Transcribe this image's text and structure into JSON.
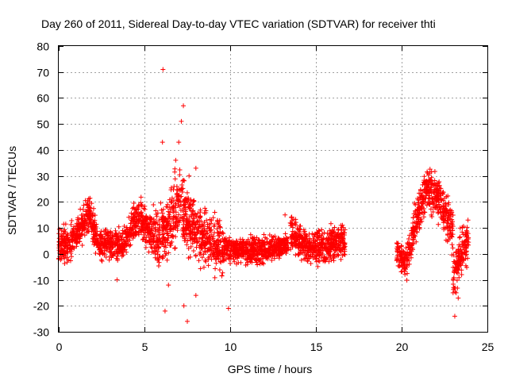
{
  "chart_data": {
    "type": "scatter",
    "title": "Day 260 of 2011, Sidereal Day-to-day VTEC variation (SDTVAR) for receiver thti",
    "xlabel": "GPS time / hours",
    "ylabel": "SDTVAR / TECUs",
    "xlim": [
      0,
      25
    ],
    "ylim": [
      -30,
      80
    ],
    "xticks": [
      0,
      5,
      10,
      15,
      20,
      25
    ],
    "yticks": [
      -30,
      -20,
      -10,
      0,
      10,
      20,
      30,
      40,
      50,
      60,
      70,
      80
    ],
    "grid": true,
    "marker": "+",
    "color": "#ff0000",
    "series": [
      {
        "name": "SDTVAR",
        "segments": [
          {
            "x_start": 0.0,
            "x_end": 0.8,
            "center": [
              [
                0.0,
                2
              ],
              [
                0.4,
                3
              ],
              [
                0.8,
                5
              ]
            ],
            "spread": 10
          },
          {
            "x_start": 0.8,
            "x_end": 2.3,
            "center": [
              [
                0.8,
                5
              ],
              [
                1.3,
                10
              ],
              [
                1.8,
                16
              ],
              [
                2.3,
                4
              ]
            ],
            "spread": 9
          },
          {
            "x_start": 2.3,
            "x_end": 3.7,
            "center": [
              [
                2.3,
                4
              ],
              [
                3.0,
                4
              ],
              [
                3.7,
                3
              ]
            ],
            "spread": 8
          },
          {
            "x_start": 3.7,
            "x_end": 4.7,
            "center": [
              [
                3.7,
                3
              ],
              [
                4.2,
                10
              ],
              [
                4.7,
                14
              ]
            ],
            "spread": 9
          },
          {
            "x_start": 4.7,
            "x_end": 5.5,
            "center": [
              [
                4.7,
                14
              ],
              [
                5.1,
                10
              ],
              [
                5.5,
                6
              ]
            ],
            "spread": 10
          },
          {
            "x_start": 5.5,
            "x_end": 6.5,
            "center": [
              [
                5.5,
                6
              ],
              [
                6.0,
                8
              ],
              [
                6.5,
                10
              ]
            ],
            "spread": 16
          },
          {
            "x_start": 6.5,
            "x_end": 7.4,
            "center": [
              [
                6.5,
                10
              ],
              [
                7.0,
                20
              ],
              [
                7.4,
                15
              ]
            ],
            "spread": 22
          },
          {
            "x_start": 7.4,
            "x_end": 9.6,
            "center": [
              [
                7.4,
                15
              ],
              [
                8.5,
                5
              ],
              [
                9.6,
                2
              ]
            ],
            "spread": 16
          },
          {
            "x_start": 9.6,
            "x_end": 13.4,
            "center": [
              [
                9.6,
                2
              ],
              [
                11.5,
                1
              ],
              [
                13.4,
                4
              ]
            ],
            "spread": 7
          },
          {
            "x_start": 13.5,
            "x_end": 16.7,
            "center": [
              [
                13.5,
                8
              ],
              [
                14.5,
                2
              ],
              [
                15.5,
                3
              ],
              [
                16.7,
                5
              ]
            ],
            "spread": 9
          },
          {
            "x_start": 19.7,
            "x_end": 20.2,
            "center": [
              [
                19.7,
                2
              ],
              [
                20.0,
                -2
              ],
              [
                20.2,
                -5
              ]
            ],
            "spread": 7
          },
          {
            "x_start": 20.2,
            "x_end": 21.5,
            "center": [
              [
                20.2,
                -5
              ],
              [
                20.8,
                12
              ],
              [
                21.5,
                26
              ]
            ],
            "spread": 10
          },
          {
            "x_start": 21.5,
            "x_end": 23.0,
            "center": [
              [
                21.5,
                26
              ],
              [
                22.2,
                20
              ],
              [
                23.0,
                8
              ]
            ],
            "spread": 12
          },
          {
            "x_start": 23.0,
            "x_end": 23.9,
            "center": [
              [
                23.0,
                -10
              ],
              [
                23.4,
                0
              ],
              [
                23.9,
                5
              ]
            ],
            "spread": 12
          }
        ],
        "outliers": [
          {
            "x": 6.08,
            "y": 71
          },
          {
            "x": 6.05,
            "y": 43
          },
          {
            "x": 7.27,
            "y": 57
          },
          {
            "x": 7.15,
            "y": 51
          },
          {
            "x": 7.5,
            "y": -26
          },
          {
            "x": 7.3,
            "y": -20
          },
          {
            "x": 8.0,
            "y": -16
          },
          {
            "x": 3.4,
            "y": -10
          },
          {
            "x": 9.9,
            "y": -21
          },
          {
            "x": 9.1,
            "y": 16
          },
          {
            "x": 13.2,
            "y": 15
          },
          {
            "x": 23.1,
            "y": -24
          },
          {
            "x": 23.0,
            "y": -15
          },
          {
            "x": 23.3,
            "y": -17
          },
          {
            "x": 23.5,
            "y": -8
          },
          {
            "x": 7.0,
            "y": 43
          },
          {
            "x": 7.6,
            "y": 30
          },
          {
            "x": 8.0,
            "y": 33
          },
          {
            "x": 6.4,
            "y": -12
          },
          {
            "x": 6.2,
            "y": -22
          }
        ]
      }
    ]
  }
}
